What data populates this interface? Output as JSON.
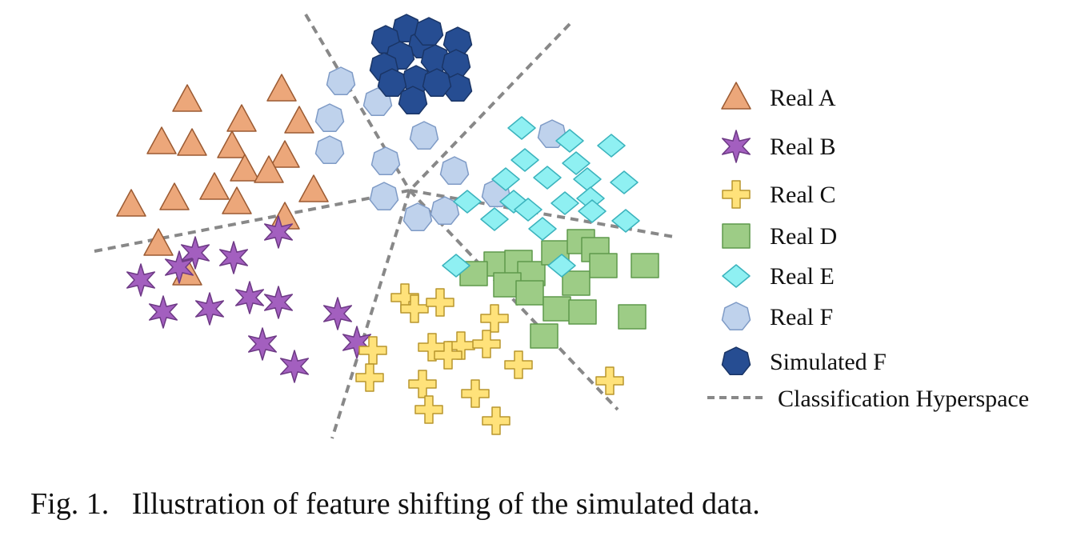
{
  "caption": "Fig. 1.   Illustration of feature shifting of the simulated data.",
  "legend": {
    "items": [
      {
        "key": "real_a",
        "label": "Real A",
        "shape": "triangle",
        "fill": "#eca77a",
        "stroke": "#9b5a32"
      },
      {
        "key": "real_b",
        "label": "Real B",
        "shape": "star",
        "fill": "#a35fbf",
        "stroke": "#6e3a86"
      },
      {
        "key": "real_c",
        "label": "Real C",
        "shape": "plus",
        "fill": "#ffe27a",
        "stroke": "#b8962d"
      },
      {
        "key": "real_d",
        "label": "Real D",
        "shape": "square",
        "fill": "#9dcc86",
        "stroke": "#5f9a4c"
      },
      {
        "key": "real_e",
        "label": "Real E",
        "shape": "diamond",
        "fill": "#8ff0f2",
        "stroke": "#3bb3bd"
      },
      {
        "key": "real_f",
        "label": "Real F",
        "shape": "heptagon",
        "fill": "#bfd2ec",
        "stroke": "#7f9bc6"
      },
      {
        "key": "sim_f",
        "label": "Simulated F",
        "shape": "heptagon",
        "fill": "#264d92",
        "stroke": "#1a3566"
      }
    ],
    "line_label": "Classification Hyperspace",
    "line_color": "#888888"
  }
}
